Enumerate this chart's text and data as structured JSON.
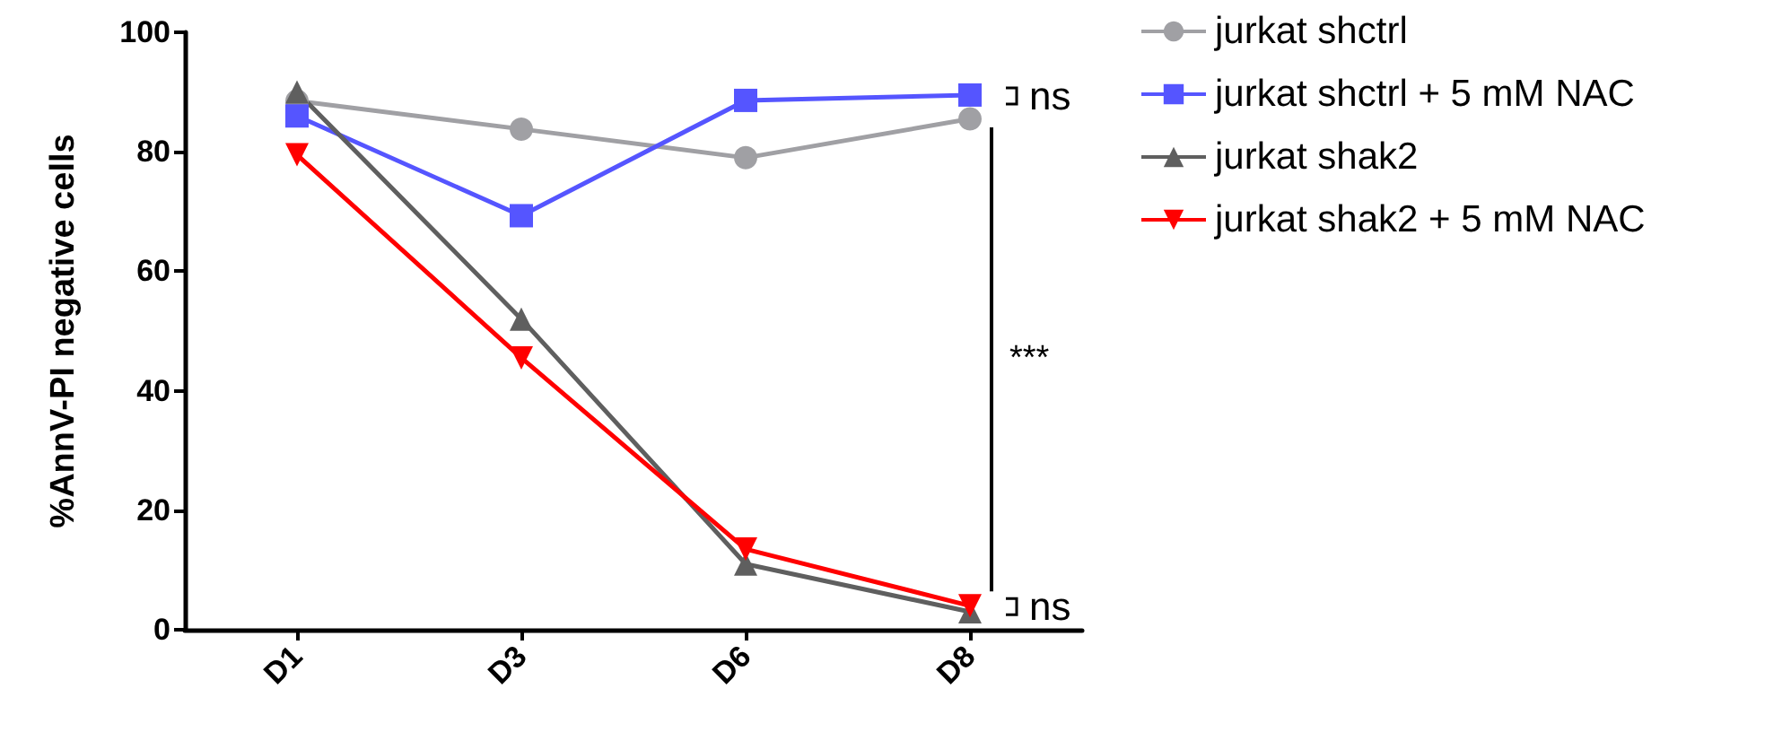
{
  "chart_data": {
    "type": "line",
    "ylabel": "%AnnV-PI negative cells",
    "categories": [
      "D1",
      "D3",
      "D6",
      "D8"
    ],
    "series": [
      {
        "name": "jurkat shctrl",
        "color": "#a0a0a4",
        "marker": "circle",
        "values": [
          88.5,
          83.8,
          79,
          85.5
        ]
      },
      {
        "name": "jurkat shctrl + 5 mM NAC",
        "color": "#5555ff",
        "marker": "square",
        "values": [
          86,
          69.3,
          88.6,
          89.5
        ]
      },
      {
        "name": "jurkat shak2",
        "color": "#5f5f5f",
        "marker": "triangle",
        "values": [
          90,
          52,
          11,
          3
        ]
      },
      {
        "name": "jurkat shak2 + 5 mM NAC",
        "color": "#ff0000",
        "marker": "triangle-down",
        "values": [
          79.5,
          45.5,
          13.5,
          4
        ]
      }
    ],
    "ylim": [
      0,
      100
    ],
    "yticks": [
      0,
      20,
      40,
      60,
      80,
      100
    ],
    "grid": false,
    "legend": "top right",
    "annotations": [
      {
        "text": "ns",
        "x": "D8",
        "y": 89.5
      },
      "***",
      {
        "text": "ns",
        "x": "D8",
        "y": 4
      }
    ]
  }
}
